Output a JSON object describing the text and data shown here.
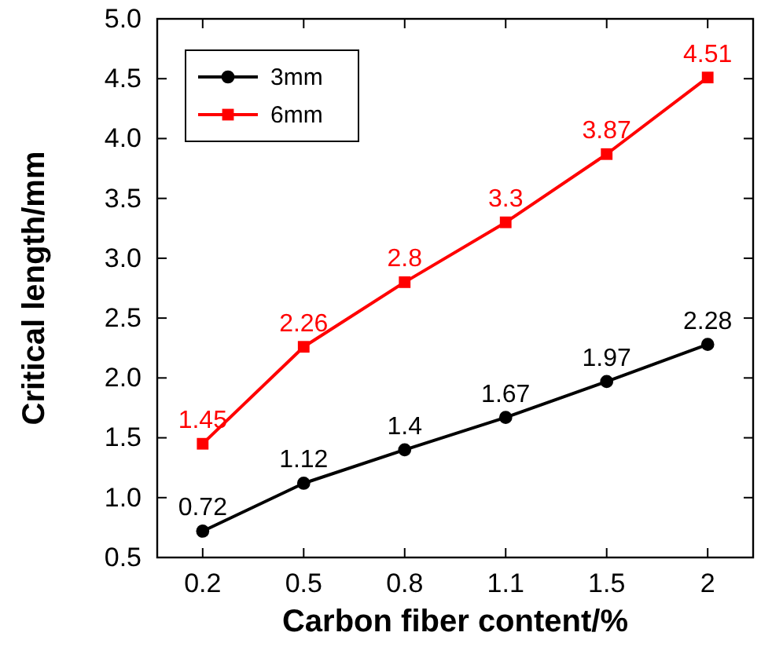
{
  "chart_data": {
    "type": "line",
    "xlabel": "Carbon fiber content/%",
    "ylabel": "Critical length/mm",
    "categories": [
      "0.2",
      "0.5",
      "0.8",
      "1.1",
      "1.5",
      "2"
    ],
    "series": [
      {
        "name": "3mm",
        "color": "#000000",
        "marker": "circle",
        "values": [
          0.72,
          1.12,
          1.4,
          1.67,
          1.97,
          2.28
        ]
      },
      {
        "name": "6mm",
        "color": "#ff0000",
        "marker": "square",
        "values": [
          1.45,
          2.26,
          2.8,
          3.3,
          3.87,
          4.51
        ]
      }
    ],
    "ylim": [
      0.5,
      5.0
    ],
    "yticks": [
      0.5,
      {
        "value": 1,
        "label": "1.0"
      },
      1.5,
      {
        "value": 2,
        "label": "2.0"
      },
      2.5,
      {
        "value": 3,
        "label": "3.0"
      },
      3.5,
      {
        "value": 4,
        "label": "4.0"
      },
      4.5,
      {
        "value": 5,
        "label": "5.0"
      }
    ],
    "data_labels": true,
    "legend": "top left",
    "line_style": "solid",
    "grid": false
  }
}
